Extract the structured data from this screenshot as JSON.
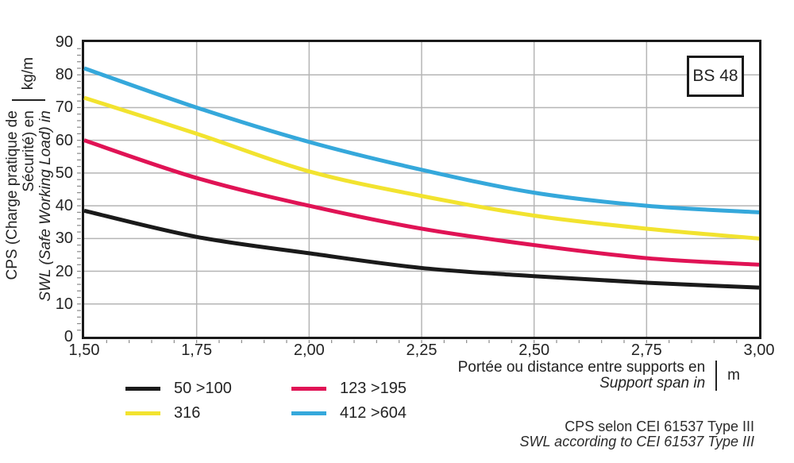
{
  "chart_data": {
    "type": "line",
    "annotation_box": "BS 48",
    "x_axis": {
      "label_fr": "Portée ou distance entre supports en",
      "label_en": "Support span in",
      "unit": "m",
      "tick_labels": [
        "1,50",
        "1,75",
        "2,00",
        "2,25",
        "2,50",
        "2,75",
        "3,00"
      ]
    },
    "y_axis": {
      "label_fr": "CPS (Charge pratique de Sécurité) en",
      "label_en": "SWL (Safe Working Load) in",
      "unit": "kg/m",
      "ticks": [
        0,
        10,
        20,
        30,
        40,
        50,
        60,
        70,
        80,
        90
      ]
    },
    "x": [
      1.5,
      1.75,
      2.0,
      2.25,
      2.5,
      2.75,
      3.0
    ],
    "xlim": [
      1.5,
      3.0
    ],
    "ylim": [
      0,
      90
    ],
    "grid": true,
    "legend_position": "bottom-left",
    "series": [
      {
        "name": "50 >100",
        "color": "#1a1a1a",
        "values": [
          38.5,
          30.5,
          25.5,
          21.0,
          18.5,
          16.5,
          15.0
        ]
      },
      {
        "name": "123 >195",
        "color": "#e01355",
        "values": [
          60.0,
          48.5,
          40.0,
          33.0,
          28.0,
          24.0,
          22.0
        ]
      },
      {
        "name": "316",
        "color": "#f2e32f",
        "values": [
          73.0,
          62.0,
          50.5,
          43.0,
          37.0,
          33.0,
          30.0
        ]
      },
      {
        "name": "412 >604",
        "color": "#35a8db",
        "values": [
          82.0,
          70.0,
          59.5,
          51.0,
          44.0,
          40.0,
          38.0
        ]
      }
    ]
  },
  "footer": {
    "line_fr": "CPS selon CEI 61537 Type III",
    "line_en": "SWL according to CEI 61537 Type III"
  },
  "colors": {
    "grid": "#b5b5b5",
    "axis": "#1a1a1a",
    "tick": "#8a8a8a",
    "text": "#232323"
  }
}
